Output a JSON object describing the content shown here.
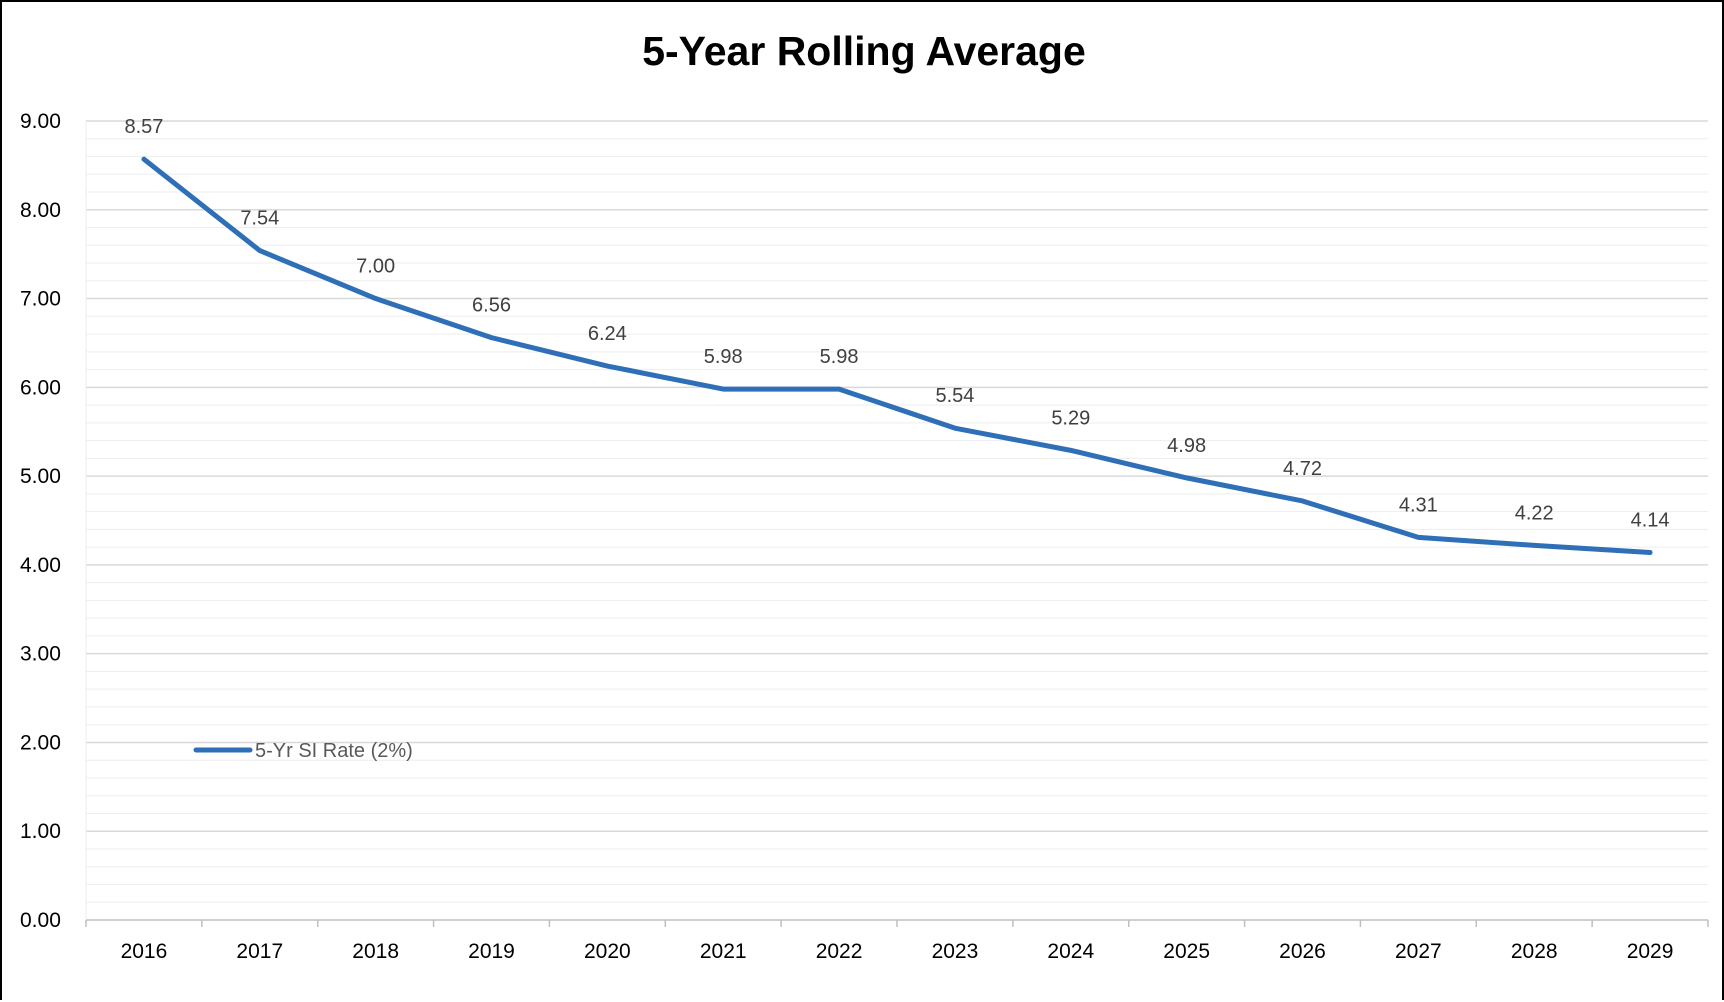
{
  "chart_data": {
    "type": "line",
    "title": "5-Year Rolling Average",
    "xlabel": "",
    "ylabel": "",
    "categories": [
      "2016",
      "2017",
      "2018",
      "2019",
      "2020",
      "2021",
      "2022",
      "2023",
      "2024",
      "2025",
      "2026",
      "2027",
      "2028",
      "2029"
    ],
    "series": [
      {
        "name": "5-Yr SI Rate (2%)",
        "values": [
          8.57,
          7.54,
          7.0,
          6.56,
          6.24,
          5.98,
          5.98,
          5.54,
          5.29,
          4.98,
          4.72,
          4.31,
          4.22,
          4.14
        ],
        "labels": [
          "8.57",
          "7.54",
          "7.00",
          "6.56",
          "6.24",
          "5.98",
          "5.98",
          "5.54",
          "5.29",
          "4.98",
          "4.72",
          "4.31",
          "4.22",
          "4.14"
        ],
        "color": "#2E6FB7"
      }
    ],
    "ylim": [
      0,
      9
    ],
    "yticks": [
      "0.00",
      "1.00",
      "2.00",
      "3.00",
      "4.00",
      "5.00",
      "6.00",
      "7.00",
      "8.00",
      "9.00"
    ],
    "grid": true,
    "minor_grid": true,
    "legend_position": "lower-left"
  },
  "colors": {
    "line": "#2E6FB7",
    "major_grid": "#D9D9D9",
    "minor_grid": "#EDEDED",
    "axis": "#BFBFBF"
  }
}
